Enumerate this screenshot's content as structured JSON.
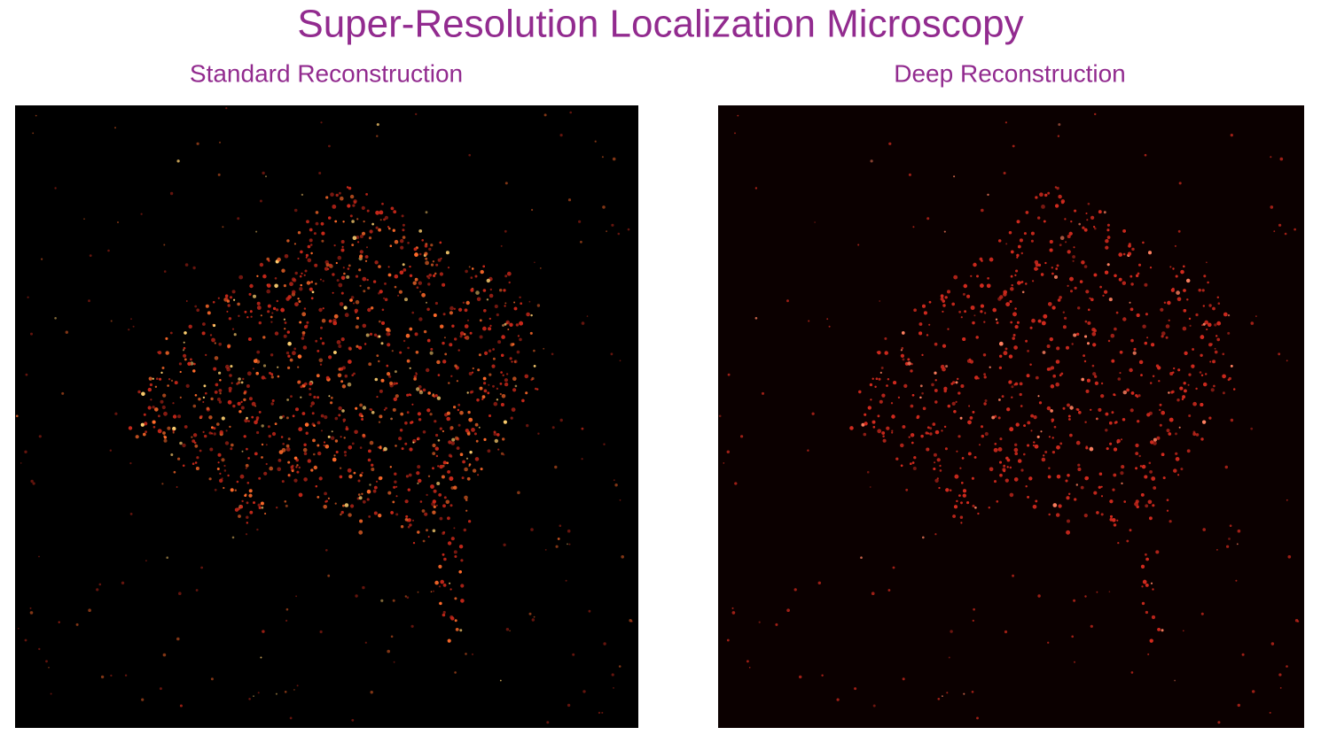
{
  "header": {
    "title": "Super-Resolution Localization Microscopy"
  },
  "panels": [
    {
      "title": "Standard Reconstruction"
    },
    {
      "title": "Deep Reconstruction"
    }
  ]
}
